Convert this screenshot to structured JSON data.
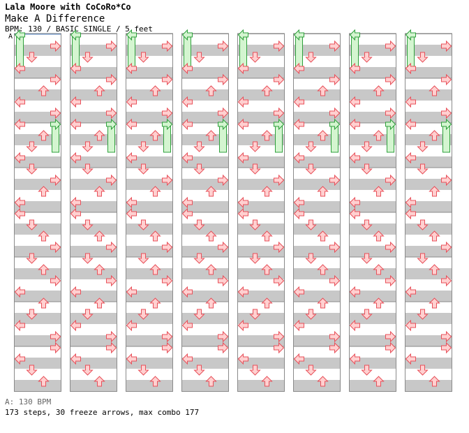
{
  "header": {
    "artist": "Lala Moore with CoCoRo*Co",
    "title": "Make A Difference",
    "meta": "BPM: 130 / BASIC SINGLE / 5 feet"
  },
  "section_label": "A",
  "footer": {
    "bpm_line": "A: 130 BPM",
    "stats_line": "173 steps, 30 freeze arrows, max combo 177"
  },
  "colors": {
    "band_light": "#ffffff",
    "band_dark": "#c8c8c8",
    "grid_line": "#8a8a8a",
    "arrow_fill": "#ffd0d0",
    "arrow_stroke": "#e8505a",
    "freeze_fill": "#d4f5d0",
    "freeze_stroke": "#2ea03c",
    "marker_line": "#5a8ac8"
  },
  "chart_data": {
    "type": "table",
    "lanes": [
      "left",
      "down",
      "up",
      "right"
    ],
    "measures_per_column": 8,
    "rows_per_measure": 16,
    "notes": [
      {
        "m": 0,
        "r": 4,
        "l": "right"
      },
      {
        "m": 0,
        "r": 8,
        "l": "down"
      },
      {
        "m": 0,
        "r": 12,
        "l": "left"
      },
      {
        "m": 1,
        "r": 0,
        "l": "right"
      },
      {
        "m": 1,
        "r": 4,
        "l": "up"
      },
      {
        "m": 1,
        "r": 8,
        "l": "left"
      },
      {
        "m": 1,
        "r": 12,
        "l": "right"
      },
      {
        "m": 2,
        "r": 0,
        "l": "left"
      },
      {
        "m": 2,
        "r": 4,
        "l": "up"
      },
      {
        "m": 2,
        "r": 8,
        "l": "down"
      },
      {
        "m": 2,
        "r": 12,
        "l": "left"
      },
      {
        "m": 3,
        "r": 0,
        "l": "down"
      },
      {
        "m": 3,
        "r": 4,
        "l": "right"
      },
      {
        "m": 3,
        "r": 8,
        "l": "up"
      },
      {
        "m": 3,
        "r": 12,
        "l": "left"
      },
      {
        "m": 4,
        "r": 0,
        "l": "left"
      },
      {
        "m": 4,
        "r": 4,
        "l": "down"
      },
      {
        "m": 4,
        "r": 8,
        "l": "up"
      },
      {
        "m": 4,
        "r": 12,
        "l": "right"
      },
      {
        "m": 5,
        "r": 0,
        "l": "down"
      },
      {
        "m": 5,
        "r": 4,
        "l": "up"
      },
      {
        "m": 5,
        "r": 8,
        "l": "right"
      },
      {
        "m": 5,
        "r": 12,
        "l": "left"
      },
      {
        "m": 6,
        "r": 0,
        "l": "up"
      },
      {
        "m": 6,
        "r": 4,
        "l": "down"
      },
      {
        "m": 6,
        "r": 8,
        "l": "left"
      },
      {
        "m": 6,
        "r": 12,
        "l": "right"
      },
      {
        "m": 7,
        "r": 0,
        "l": "right"
      },
      {
        "m": 7,
        "r": 4,
        "l": "left"
      },
      {
        "m": 7,
        "r": 8,
        "l": "down"
      },
      {
        "m": 7,
        "r": 12,
        "l": "up"
      }
    ],
    "freezes": [
      {
        "m": 0,
        "r": 0,
        "l": "left",
        "len": 12
      },
      {
        "m": 2,
        "r": 0,
        "l": "right",
        "len": 10
      }
    ]
  }
}
